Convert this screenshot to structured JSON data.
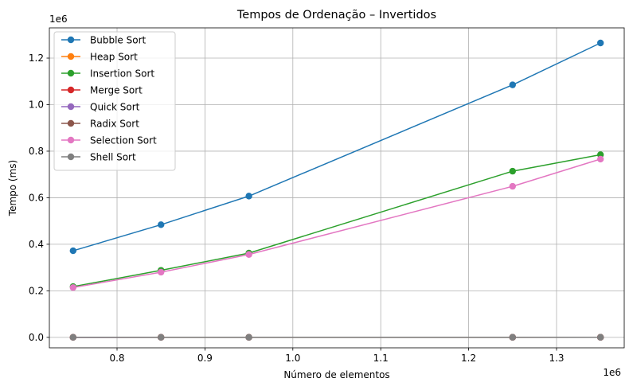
{
  "chart_data": {
    "type": "line",
    "title": "Tempos de Ordenação – Invertidos",
    "xlabel": "Número de elementos",
    "ylabel": "Tempo (ms)",
    "x_offset_label": "1e6",
    "y_offset_label": "1e6",
    "x": [
      750000,
      850000,
      950000,
      1250000,
      1350000
    ],
    "xlim": [
      723000,
      1377000
    ],
    "ylim": [
      -45000,
      1330000
    ],
    "xticks": [
      800000,
      900000,
      1000000,
      1100000,
      1200000,
      1300000
    ],
    "xtick_labels": [
      "0.8",
      "0.9",
      "1.0",
      "1.1",
      "1.2",
      "1.3"
    ],
    "yticks": [
      0,
      200000,
      400000,
      600000,
      800000,
      1000000,
      1200000
    ],
    "ytick_labels": [
      "0.0",
      "0.2",
      "0.4",
      "0.6",
      "0.8",
      "1.0",
      "1.2"
    ],
    "grid": true,
    "legend_position": "top-left",
    "series": [
      {
        "name": "Bubble Sort",
        "color": "#1f77b4",
        "values": [
          372000,
          484000,
          607000,
          1085000,
          1265000
        ]
      },
      {
        "name": "Heap Sort",
        "color": "#ff7f0e",
        "values": [
          220,
          250,
          280,
          370,
          400
        ]
      },
      {
        "name": "Insertion Sort",
        "color": "#2ca02c",
        "values": [
          218000,
          288000,
          362000,
          714000,
          785000
        ]
      },
      {
        "name": "Merge Sort",
        "color": "#d62728",
        "values": [
          150,
          170,
          190,
          250,
          270
        ]
      },
      {
        "name": "Quick Sort",
        "color": "#9467bd",
        "values": [
          100,
          115,
          130,
          170,
          185
        ]
      },
      {
        "name": "Radix Sort",
        "color": "#8c564b",
        "values": [
          60,
          70,
          80,
          105,
          115
        ]
      },
      {
        "name": "Selection Sort",
        "color": "#e377c2",
        "values": [
          214000,
          280000,
          356000,
          649000,
          766000
        ]
      },
      {
        "name": "Shell Sort",
        "color": "#7f7f7f",
        "values": [
          180,
          200,
          225,
          300,
          320
        ]
      }
    ]
  }
}
